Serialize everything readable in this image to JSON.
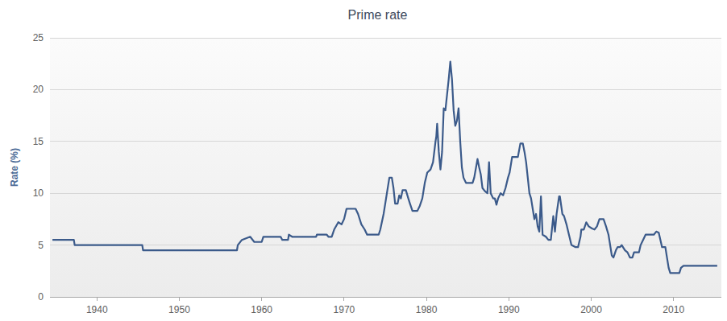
{
  "chart_data": {
    "type": "line",
    "title": "Prime rate",
    "y_label": "Rate (%)",
    "color": "#3b5a8a",
    "grid": true,
    "xlim": [
      1934.3,
      2015.8
    ],
    "xticks": [
      1940,
      1950,
      1960,
      1970,
      1980,
      1990,
      2000,
      2010
    ],
    "ylim": [
      0,
      25
    ],
    "yticks": [
      0,
      5,
      10,
      15,
      20,
      25
    ],
    "x": [
      1934.6,
      1937.2,
      1937.3,
      1945.5,
      1945.6,
      1957.0,
      1957.1,
      1957.6,
      1958.6,
      1959.1,
      1960.0,
      1960.2,
      1962.3,
      1962.5,
      1963.2,
      1963.3,
      1963.7,
      1966.6,
      1966.7,
      1967.9,
      1968.1,
      1968.5,
      1968.8,
      1969.3,
      1969.7,
      1970.0,
      1970.3,
      1971.4,
      1971.7,
      1972.1,
      1972.5,
      1972.8,
      1974.2,
      1974.4,
      1974.8,
      1975.0,
      1975.2,
      1975.5,
      1975.8,
      1976.0,
      1976.2,
      1976.5,
      1976.7,
      1976.9,
      1977.1,
      1977.5,
      1977.8,
      1978.0,
      1978.3,
      1978.9,
      1979.2,
      1979.5,
      1979.8,
      1980.1,
      1980.5,
      1980.8,
      1981.1,
      1981.2,
      1981.3,
      1981.5,
      1981.7,
      1981.9,
      1982.1,
      1982.3,
      1982.5,
      1982.7,
      1982.9,
      1983.1,
      1983.3,
      1983.5,
      1983.7,
      1983.9,
      1984.1,
      1984.3,
      1984.5,
      1984.8,
      1985.6,
      1985.8,
      1986.2,
      1986.4,
      1986.6,
      1986.8,
      1987.1,
      1987.4,
      1987.6,
      1987.8,
      1988.1,
      1988.3,
      1988.5,
      1988.7,
      1989.0,
      1989.3,
      1989.6,
      1989.9,
      1990.1,
      1990.4,
      1991.1,
      1991.4,
      1991.7,
      1991.9,
      1992.1,
      1992.3,
      1992.5,
      1992.7,
      1992.9,
      1993.1,
      1993.3,
      1993.5,
      1993.7,
      1993.9,
      1994.1,
      1994.5,
      1994.8,
      1995.1,
      1995.4,
      1995.6,
      1995.8,
      1996.1,
      1996.2,
      1996.5,
      1996.7,
      1997.0,
      1997.3,
      1997.6,
      1998.1,
      1998.4,
      1998.7,
      1998.8,
      1999.1,
      1999.4,
      1999.7,
      2000.1,
      2000.4,
      2000.7,
      2001.0,
      2001.5,
      2001.8,
      2002.1,
      2002.3,
      2002.5,
      2002.7,
      2003.0,
      2003.2,
      2003.5,
      2003.7,
      2004.1,
      2004.4,
      2004.7,
      2005.0,
      2005.2,
      2005.8,
      2006.0,
      2006.3,
      2006.6,
      2007.6,
      2007.9,
      2008.2,
      2008.4,
      2008.6,
      2009.0,
      2009.2,
      2009.4,
      2009.6,
      2010.7,
      2010.9,
      2011.2,
      2015.3
    ],
    "values": [
      5.5,
      5.5,
      5.0,
      5.0,
      4.5,
      4.5,
      5.0,
      5.5,
      5.8,
      5.3,
      5.3,
      5.8,
      5.8,
      5.5,
      5.5,
      6.0,
      5.8,
      5.8,
      6.0,
      6.0,
      5.8,
      5.8,
      6.5,
      7.2,
      7.0,
      7.5,
      8.5,
      8.5,
      8.0,
      7.0,
      6.5,
      6.0,
      6.0,
      6.5,
      8.0,
      9.0,
      10.0,
      11.5,
      11.5,
      10.5,
      9.0,
      9.0,
      9.8,
      9.5,
      10.3,
      10.3,
      9.5,
      9.0,
      8.3,
      8.3,
      8.8,
      9.5,
      11.0,
      12.0,
      12.3,
      13.0,
      15.0,
      15.5,
      16.7,
      14.0,
      12.3,
      14.0,
      18.2,
      18.0,
      19.5,
      21.0,
      22.7,
      21.0,
      18.0,
      16.5,
      17.0,
      18.2,
      15.0,
      12.5,
      11.5,
      11.0,
      11.0,
      11.5,
      13.3,
      12.5,
      11.8,
      10.5,
      10.2,
      10.0,
      13.0,
      10.0,
      9.5,
      9.5,
      8.9,
      9.5,
      10.0,
      9.8,
      10.5,
      11.5,
      12.0,
      13.5,
      13.5,
      14.8,
      14.8,
      14.0,
      13.0,
      11.5,
      10.0,
      9.5,
      8.5,
      7.5,
      8.0,
      6.8,
      6.3,
      9.7,
      6.0,
      5.8,
      5.5,
      5.5,
      7.8,
      6.3,
      8.0,
      9.7,
      9.7,
      8.0,
      7.8,
      7.0,
      6.0,
      5.0,
      4.8,
      4.8,
      5.8,
      6.5,
      6.5,
      7.2,
      6.8,
      6.6,
      6.5,
      6.8,
      7.5,
      7.5,
      6.8,
      6.0,
      5.0,
      4.0,
      3.8,
      4.5,
      4.8,
      4.8,
      5.0,
      4.5,
      4.3,
      3.8,
      3.8,
      4.3,
      4.3,
      5.0,
      5.5,
      6.0,
      6.0,
      6.3,
      6.2,
      5.5,
      4.8,
      4.8,
      3.8,
      2.8,
      2.3,
      2.3,
      2.8,
      3.0,
      3.0
    ]
  }
}
